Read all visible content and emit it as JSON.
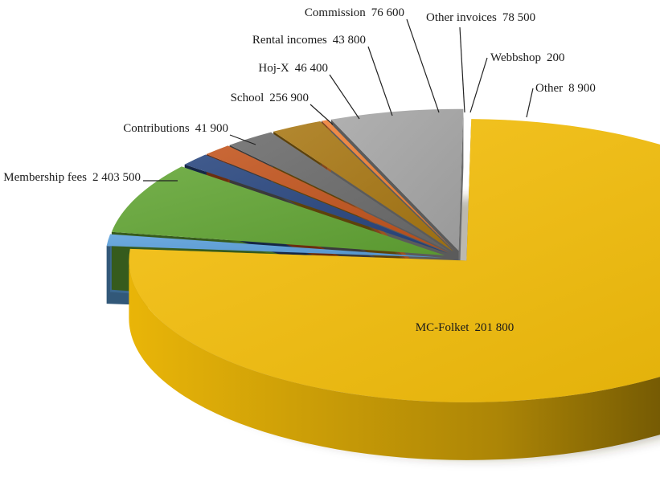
{
  "chart_data": {
    "type": "pie",
    "title": "",
    "style": "3d-exploded",
    "slices": [
      {
        "name": "Membership fees",
        "value": 2403500,
        "value_label": "2 403 500",
        "color": "#F5BE08"
      },
      {
        "name": "Contributions",
        "value": 41900,
        "value_label": "41 900",
        "color": "#5AA0DC"
      },
      {
        "name": "School",
        "value": 256900,
        "value_label": "256 900",
        "color": "#62A534"
      },
      {
        "name": "Hoj-X",
        "value": 46400,
        "value_label": "46 400",
        "color": "#27457E"
      },
      {
        "name": "Rental incomes",
        "value": 43800,
        "value_label": "43 800",
        "color": "#C2531C"
      },
      {
        "name": "Commission",
        "value": 76600,
        "value_label": "76 600",
        "color": "#6A6A6A"
      },
      {
        "name": "Other invoices",
        "value": 78500,
        "value_label": "78 500",
        "color": "#A97814"
      },
      {
        "name": "Webbshop",
        "value": 200,
        "value_label": "200",
        "color": "#4A6FB0"
      },
      {
        "name": "Other",
        "value": 8900,
        "value_label": "8 900",
        "color": "#EE7E32"
      },
      {
        "name": "MC-Folket",
        "value": 201800,
        "value_label": "201 800",
        "color": "#A6A6A6"
      }
    ]
  }
}
